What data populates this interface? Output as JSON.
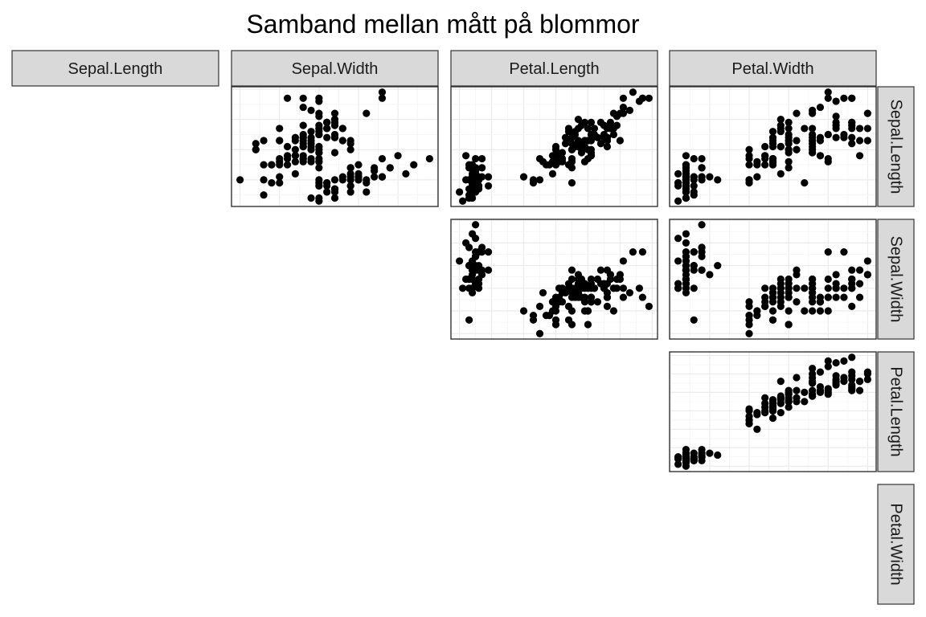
{
  "chart_data": {
    "type": "scatter",
    "title": "Samband mellan mått på blommor",
    "variables": [
      "Sepal.Length",
      "Sepal.Width",
      "Petal.Length",
      "Petal.Width"
    ],
    "layout": "upper-triangle scatterplot matrix; columns labelled on top strips, rows labelled on right strips",
    "grid": true,
    "axis_ticks_shown": false,
    "ranges": {
      "Sepal.Length": [
        4.3,
        7.9
      ],
      "Sepal.Width": [
        2.0,
        4.4
      ],
      "Petal.Length": [
        1.0,
        6.9
      ],
      "Petal.Width": [
        0.1,
        2.5
      ]
    },
    "observations": [
      [
        5.1,
        3.5,
        1.4,
        0.2
      ],
      [
        4.9,
        3.0,
        1.4,
        0.2
      ],
      [
        4.7,
        3.2,
        1.3,
        0.2
      ],
      [
        4.6,
        3.1,
        1.5,
        0.2
      ],
      [
        5.0,
        3.6,
        1.4,
        0.2
      ],
      [
        5.4,
        3.9,
        1.7,
        0.4
      ],
      [
        4.6,
        3.4,
        1.4,
        0.3
      ],
      [
        5.0,
        3.4,
        1.5,
        0.2
      ],
      [
        4.4,
        2.9,
        1.4,
        0.2
      ],
      [
        4.9,
        3.1,
        1.5,
        0.1
      ],
      [
        5.4,
        3.7,
        1.5,
        0.2
      ],
      [
        4.8,
        3.4,
        1.6,
        0.2
      ],
      [
        4.8,
        3.0,
        1.4,
        0.1
      ],
      [
        4.3,
        3.0,
        1.1,
        0.1
      ],
      [
        5.8,
        4.0,
        1.2,
        0.2
      ],
      [
        5.7,
        4.4,
        1.5,
        0.4
      ],
      [
        5.4,
        3.9,
        1.3,
        0.4
      ],
      [
        5.1,
        3.5,
        1.4,
        0.3
      ],
      [
        5.7,
        3.8,
        1.7,
        0.3
      ],
      [
        5.1,
        3.8,
        1.5,
        0.3
      ],
      [
        5.4,
        3.4,
        1.7,
        0.2
      ],
      [
        5.1,
        3.7,
        1.5,
        0.4
      ],
      [
        4.6,
        3.6,
        1.0,
        0.2
      ],
      [
        5.1,
        3.3,
        1.7,
        0.5
      ],
      [
        4.8,
        3.4,
        1.9,
        0.2
      ],
      [
        5.0,
        3.0,
        1.6,
        0.2
      ],
      [
        5.0,
        3.4,
        1.6,
        0.4
      ],
      [
        5.2,
        3.5,
        1.5,
        0.2
      ],
      [
        5.2,
        3.4,
        1.4,
        0.2
      ],
      [
        4.7,
        3.2,
        1.6,
        0.2
      ],
      [
        4.8,
        3.1,
        1.6,
        0.2
      ],
      [
        5.4,
        3.4,
        1.5,
        0.4
      ],
      [
        5.2,
        4.1,
        1.5,
        0.1
      ],
      [
        5.5,
        4.2,
        1.4,
        0.2
      ],
      [
        4.9,
        3.1,
        1.5,
        0.2
      ],
      [
        5.0,
        3.2,
        1.2,
        0.2
      ],
      [
        5.5,
        3.5,
        1.3,
        0.2
      ],
      [
        4.9,
        3.6,
        1.4,
        0.1
      ],
      [
        4.4,
        3.0,
        1.3,
        0.2
      ],
      [
        5.1,
        3.4,
        1.5,
        0.2
      ],
      [
        5.0,
        3.5,
        1.3,
        0.3
      ],
      [
        4.5,
        2.3,
        1.3,
        0.3
      ],
      [
        4.4,
        3.2,
        1.3,
        0.2
      ],
      [
        5.0,
        3.5,
        1.6,
        0.6
      ],
      [
        5.1,
        3.8,
        1.9,
        0.4
      ],
      [
        4.8,
        3.0,
        1.4,
        0.3
      ],
      [
        5.1,
        3.8,
        1.6,
        0.2
      ],
      [
        4.6,
        3.2,
        1.4,
        0.2
      ],
      [
        5.3,
        3.7,
        1.5,
        0.2
      ],
      [
        5.0,
        3.3,
        1.4,
        0.2
      ],
      [
        7.0,
        3.2,
        4.7,
        1.4
      ],
      [
        6.4,
        3.2,
        4.5,
        1.5
      ],
      [
        6.9,
        3.1,
        4.9,
        1.5
      ],
      [
        5.5,
        2.3,
        4.0,
        1.3
      ],
      [
        6.5,
        2.8,
        4.6,
        1.5
      ],
      [
        5.7,
        2.8,
        4.5,
        1.3
      ],
      [
        6.3,
        3.3,
        4.7,
        1.6
      ],
      [
        4.9,
        2.4,
        3.3,
        1.0
      ],
      [
        6.6,
        2.9,
        4.6,
        1.3
      ],
      [
        5.2,
        2.7,
        3.9,
        1.4
      ],
      [
        5.0,
        2.0,
        3.5,
        1.0
      ],
      [
        5.9,
        3.0,
        4.2,
        1.5
      ],
      [
        6.0,
        2.2,
        4.0,
        1.0
      ],
      [
        6.1,
        2.9,
        4.7,
        1.4
      ],
      [
        5.6,
        2.9,
        3.6,
        1.3
      ],
      [
        6.7,
        3.1,
        4.4,
        1.4
      ],
      [
        5.6,
        3.0,
        4.5,
        1.5
      ],
      [
        5.8,
        2.7,
        4.1,
        1.0
      ],
      [
        6.2,
        2.2,
        4.5,
        1.5
      ],
      [
        5.6,
        2.5,
        3.9,
        1.1
      ],
      [
        5.9,
        3.2,
        4.8,
        1.8
      ],
      [
        6.1,
        2.8,
        4.0,
        1.3
      ],
      [
        6.3,
        2.5,
        4.9,
        1.5
      ],
      [
        6.1,
        2.8,
        4.7,
        1.2
      ],
      [
        6.4,
        2.9,
        4.3,
        1.3
      ],
      [
        6.6,
        3.0,
        4.4,
        1.4
      ],
      [
        6.8,
        2.8,
        4.8,
        1.4
      ],
      [
        6.7,
        3.0,
        5.0,
        1.7
      ],
      [
        6.0,
        2.9,
        4.5,
        1.5
      ],
      [
        5.7,
        2.6,
        3.5,
        1.0
      ],
      [
        5.5,
        2.4,
        3.8,
        1.1
      ],
      [
        5.5,
        2.4,
        3.7,
        1.0
      ],
      [
        5.8,
        2.7,
        3.9,
        1.2
      ],
      [
        6.0,
        2.7,
        5.1,
        1.6
      ],
      [
        5.4,
        3.0,
        4.5,
        1.5
      ],
      [
        6.0,
        3.4,
        4.5,
        1.6
      ],
      [
        6.7,
        3.1,
        4.7,
        1.5
      ],
      [
        6.3,
        2.3,
        4.4,
        1.3
      ],
      [
        5.6,
        3.0,
        4.1,
        1.3
      ],
      [
        5.5,
        2.5,
        4.0,
        1.3
      ],
      [
        5.5,
        2.6,
        4.4,
        1.2
      ],
      [
        6.1,
        3.0,
        4.6,
        1.4
      ],
      [
        5.8,
        2.6,
        4.0,
        1.2
      ],
      [
        5.0,
        2.3,
        3.3,
        1.0
      ],
      [
        5.6,
        2.7,
        4.2,
        1.3
      ],
      [
        5.7,
        3.0,
        4.2,
        1.2
      ],
      [
        5.7,
        2.9,
        4.2,
        1.3
      ],
      [
        6.2,
        2.9,
        4.3,
        1.3
      ],
      [
        5.1,
        2.5,
        3.0,
        1.1
      ],
      [
        5.7,
        2.8,
        4.1,
        1.3
      ],
      [
        6.3,
        3.3,
        6.0,
        2.5
      ],
      [
        5.8,
        2.7,
        5.1,
        1.9
      ],
      [
        7.1,
        3.0,
        5.9,
        2.1
      ],
      [
        6.3,
        2.9,
        5.6,
        1.8
      ],
      [
        6.5,
        3.0,
        5.8,
        2.2
      ],
      [
        7.6,
        3.0,
        6.6,
        2.1
      ],
      [
        4.9,
        2.5,
        4.5,
        1.7
      ],
      [
        7.3,
        2.9,
        6.3,
        1.8
      ],
      [
        6.7,
        2.5,
        5.8,
        1.8
      ],
      [
        7.2,
        3.6,
        6.1,
        2.5
      ],
      [
        6.5,
        3.2,
        5.1,
        2.0
      ],
      [
        6.4,
        2.7,
        5.3,
        1.9
      ],
      [
        6.8,
        3.0,
        5.5,
        2.1
      ],
      [
        5.7,
        2.5,
        5.0,
        2.0
      ],
      [
        5.8,
        2.8,
        5.1,
        2.4
      ],
      [
        6.4,
        3.2,
        5.3,
        2.3
      ],
      [
        6.5,
        3.0,
        5.5,
        1.8
      ],
      [
        7.7,
        3.8,
        6.7,
        2.2
      ],
      [
        7.7,
        2.6,
        6.9,
        2.3
      ],
      [
        6.0,
        2.2,
        5.0,
        1.5
      ],
      [
        6.9,
        3.2,
        5.7,
        2.3
      ],
      [
        5.6,
        2.8,
        4.9,
        2.0
      ],
      [
        7.7,
        2.8,
        6.7,
        2.0
      ],
      [
        6.3,
        2.7,
        4.9,
        1.8
      ],
      [
        6.7,
        3.3,
        5.7,
        2.1
      ],
      [
        7.2,
        3.2,
        6.0,
        1.8
      ],
      [
        6.2,
        2.8,
        4.8,
        1.8
      ],
      [
        6.1,
        3.0,
        4.9,
        1.8
      ],
      [
        6.4,
        2.8,
        5.6,
        2.1
      ],
      [
        7.2,
        3.0,
        5.8,
        1.6
      ],
      [
        7.4,
        2.8,
        6.1,
        1.9
      ],
      [
        7.9,
        3.8,
        6.4,
        2.0
      ],
      [
        6.4,
        2.8,
        5.6,
        2.2
      ],
      [
        6.3,
        2.8,
        5.1,
        1.5
      ],
      [
        6.1,
        2.6,
        5.6,
        1.4
      ],
      [
        7.7,
        3.0,
        6.1,
        2.3
      ],
      [
        6.3,
        3.4,
        5.6,
        2.4
      ],
      [
        6.4,
        3.1,
        5.5,
        1.8
      ],
      [
        6.0,
        3.0,
        4.8,
        1.8
      ],
      [
        6.9,
        3.1,
        5.4,
        2.1
      ],
      [
        6.7,
        3.1,
        5.6,
        2.4
      ],
      [
        6.9,
        3.1,
        5.1,
        2.3
      ],
      [
        5.8,
        2.7,
        5.1,
        1.9
      ],
      [
        6.8,
        3.2,
        5.9,
        2.3
      ],
      [
        6.7,
        3.3,
        5.7,
        2.5
      ],
      [
        6.7,
        3.0,
        5.2,
        2.3
      ],
      [
        6.3,
        2.5,
        5.0,
        1.9
      ],
      [
        6.5,
        3.0,
        5.2,
        2.0
      ],
      [
        6.2,
        3.4,
        5.4,
        2.3
      ],
      [
        5.9,
        3.0,
        5.1,
        1.8
      ]
    ]
  }
}
